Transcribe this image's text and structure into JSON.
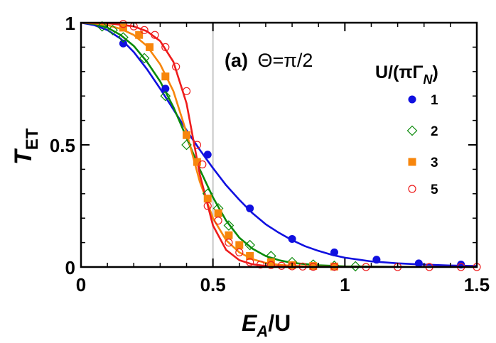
{
  "chart_data": {
    "type": "scatter",
    "panel_label": {
      "letter": "(a)",
      "text": "Θ=π/2"
    },
    "xlabel": "E_A/U",
    "ylabel": "T_ET",
    "xlim": [
      0,
      1.5
    ],
    "ylim": [
      0,
      1
    ],
    "x_ticks": [
      0,
      0.5,
      1,
      1.5
    ],
    "x_tick_labels": [
      "0",
      "0.5",
      "1",
      "1.5"
    ],
    "y_ticks": [
      0,
      0.5,
      1
    ],
    "y_tick_labels": [
      "0",
      "0.5",
      "1"
    ],
    "reference_line_x": 0.5,
    "grid": false,
    "legend": {
      "title": "U/(πΓ_N)",
      "position": "right"
    },
    "series": [
      {
        "name": "1",
        "color": "#1010e0",
        "marker": "filled-circle",
        "curve": [
          [
            0,
            1
          ],
          [
            0.05,
            0.99
          ],
          [
            0.1,
            0.97
          ],
          [
            0.15,
            0.935
          ],
          [
            0.2,
            0.88
          ],
          [
            0.25,
            0.81
          ],
          [
            0.3,
            0.73
          ],
          [
            0.35,
            0.645
          ],
          [
            0.4,
            0.56
          ],
          [
            0.45,
            0.48
          ],
          [
            0.5,
            0.405
          ],
          [
            0.55,
            0.335
          ],
          [
            0.6,
            0.275
          ],
          [
            0.65,
            0.22
          ],
          [
            0.7,
            0.175
          ],
          [
            0.75,
            0.14
          ],
          [
            0.8,
            0.11
          ],
          [
            0.85,
            0.085
          ],
          [
            0.9,
            0.066
          ],
          [
            0.95,
            0.05
          ],
          [
            1.0,
            0.038
          ],
          [
            1.1,
            0.023
          ],
          [
            1.2,
            0.015
          ],
          [
            1.3,
            0.01
          ],
          [
            1.4,
            0.006
          ],
          [
            1.5,
            0.004
          ]
        ],
        "points": [
          [
            0.16,
            0.915
          ],
          [
            0.32,
            0.73
          ],
          [
            0.48,
            0.46
          ],
          [
            0.64,
            0.24
          ],
          [
            0.8,
            0.115
          ],
          [
            0.96,
            0.06
          ],
          [
            1.12,
            0.03
          ],
          [
            1.28,
            0.015
          ],
          [
            1.44,
            0.01
          ]
        ]
      },
      {
        "name": "2",
        "color": "#0a8a0a",
        "marker": "open-diamond",
        "curve": [
          [
            0,
            1
          ],
          [
            0.05,
            0.995
          ],
          [
            0.1,
            0.98
          ],
          [
            0.15,
            0.95
          ],
          [
            0.2,
            0.905
          ],
          [
            0.25,
            0.84
          ],
          [
            0.3,
            0.76
          ],
          [
            0.35,
            0.655
          ],
          [
            0.4,
            0.53
          ],
          [
            0.45,
            0.4
          ],
          [
            0.5,
            0.285
          ],
          [
            0.55,
            0.19
          ],
          [
            0.6,
            0.12
          ],
          [
            0.65,
            0.075
          ],
          [
            0.7,
            0.045
          ],
          [
            0.75,
            0.028
          ],
          [
            0.8,
            0.017
          ],
          [
            0.9,
            0.007
          ],
          [
            1.0,
            0.003
          ],
          [
            1.2,
            0.001
          ],
          [
            1.5,
            0
          ]
        ],
        "points": [
          [
            0.08,
            0.985
          ],
          [
            0.12,
            0.97
          ],
          [
            0.16,
            0.94
          ],
          [
            0.24,
            0.855
          ],
          [
            0.32,
            0.7
          ],
          [
            0.4,
            0.5
          ],
          [
            0.48,
            0.3
          ],
          [
            0.52,
            0.24
          ],
          [
            0.56,
            0.17
          ],
          [
            0.64,
            0.09
          ],
          [
            0.72,
            0.045
          ],
          [
            0.8,
            0.02
          ],
          [
            0.88,
            0.01
          ],
          [
            0.96,
            0.005
          ],
          [
            1.04,
            0.003
          ]
        ]
      },
      {
        "name": "3",
        "color": "#f7860c",
        "marker": "filled-square",
        "curve": [
          [
            0,
            1
          ],
          [
            0.05,
            0.997
          ],
          [
            0.1,
            0.99
          ],
          [
            0.15,
            0.975
          ],
          [
            0.2,
            0.95
          ],
          [
            0.25,
            0.905
          ],
          [
            0.3,
            0.83
          ],
          [
            0.35,
            0.72
          ],
          [
            0.4,
            0.55
          ],
          [
            0.45,
            0.35
          ],
          [
            0.5,
            0.2
          ],
          [
            0.55,
            0.11
          ],
          [
            0.6,
            0.06
          ],
          [
            0.65,
            0.032
          ],
          [
            0.7,
            0.017
          ],
          [
            0.75,
            0.009
          ],
          [
            0.8,
            0.005
          ],
          [
            0.9,
            0.0015
          ],
          [
            1.0,
            0
          ],
          [
            1.5,
            0
          ]
        ],
        "points": [
          [
            0.16,
            0.98
          ],
          [
            0.22,
            0.95
          ],
          [
            0.26,
            0.9
          ],
          [
            0.32,
            0.78
          ],
          [
            0.4,
            0.54
          ],
          [
            0.44,
            0.43
          ],
          [
            0.48,
            0.28
          ],
          [
            0.52,
            0.22
          ],
          [
            0.56,
            0.13
          ],
          [
            0.6,
            0.09
          ],
          [
            0.64,
            0.045
          ],
          [
            0.72,
            0.02
          ],
          [
            0.8,
            0.008
          ],
          [
            0.88,
            0.004
          ],
          [
            0.96,
            0.002
          ]
        ]
      },
      {
        "name": "5",
        "color": "#ee1c1c",
        "marker": "open-circle",
        "curve": [
          [
            0,
            1
          ],
          [
            0.1,
            0.998
          ],
          [
            0.15,
            0.992
          ],
          [
            0.2,
            0.985
          ],
          [
            0.25,
            0.965
          ],
          [
            0.3,
            0.925
          ],
          [
            0.35,
            0.84
          ],
          [
            0.4,
            0.67
          ],
          [
            0.45,
            0.38
          ],
          [
            0.5,
            0.17
          ],
          [
            0.55,
            0.07
          ],
          [
            0.6,
            0.028
          ],
          [
            0.65,
            0.011
          ],
          [
            0.7,
            0.004
          ],
          [
            0.8,
            0.001
          ],
          [
            1.0,
            0
          ],
          [
            1.5,
            0
          ]
        ],
        "points": [
          [
            0.16,
            0.995
          ],
          [
            0.2,
            0.985
          ],
          [
            0.24,
            0.97
          ],
          [
            0.28,
            0.95
          ],
          [
            0.32,
            0.9
          ],
          [
            0.36,
            0.82
          ],
          [
            0.4,
            0.72
          ],
          [
            0.44,
            0.5
          ],
          [
            0.46,
            0.42
          ],
          [
            0.48,
            0.25
          ],
          [
            0.52,
            0.19
          ],
          [
            0.56,
            0.1
          ],
          [
            0.6,
            0.06
          ],
          [
            0.64,
            0.02
          ],
          [
            0.68,
            0.01
          ],
          [
            0.72,
            0.008
          ],
          [
            0.76,
            0.005
          ],
          [
            0.8,
            0.003
          ],
          [
            0.84,
            0.002
          ],
          [
            0.88,
            0.001
          ],
          [
            0.96,
            0.001
          ],
          [
            1.08,
            0
          ],
          [
            1.2,
            0
          ],
          [
            1.32,
            0
          ],
          [
            1.44,
            0
          ],
          [
            1.5,
            0
          ]
        ]
      }
    ]
  }
}
